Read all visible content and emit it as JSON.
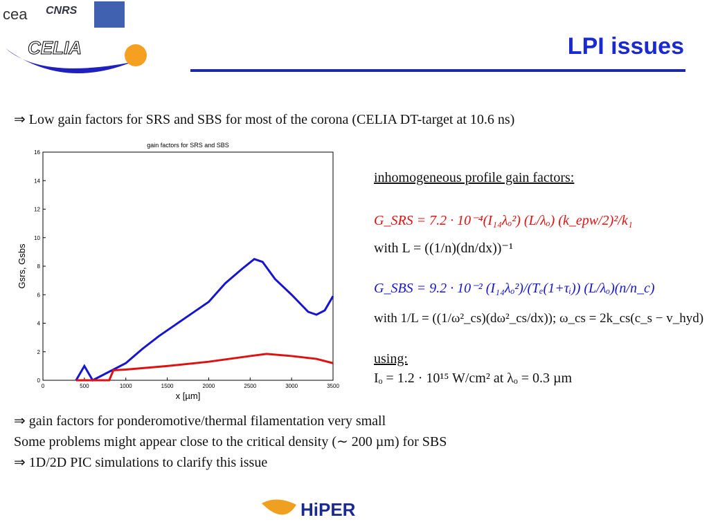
{
  "header": {
    "title": "LPI issues",
    "logos": [
      "cea",
      "CNRS",
      "CELIA",
      "HiPER"
    ]
  },
  "intro": "⇒ Low gain factors for SRS and SBS for most of the corona (CELIA DT-target at 10.6 ns)",
  "chart_data": {
    "type": "line",
    "title": "gain factors for SRS and SBS",
    "x_label": "x [µm]",
    "y_label": "Gsrs, Gsbs",
    "xlim": [
      0,
      3500
    ],
    "xticks": [
      0,
      500,
      1000,
      1500,
      2000,
      2500,
      3000,
      3500
    ],
    "ylim": [
      0,
      16
    ],
    "yticks": [
      0,
      2,
      4,
      6,
      8,
      10,
      12,
      14,
      16
    ],
    "series": [
      {
        "color": "#1515d0",
        "x": [
          400,
          500,
          600,
          800,
          1000,
          1200,
          1400,
          1600,
          1800,
          2000,
          2200,
          2400,
          2550,
          2650,
          2800,
          3000,
          3200,
          3300,
          3400,
          3500
        ],
        "values": [
          0,
          1.0,
          0,
          0.6,
          1.2,
          2.2,
          3.1,
          3.9,
          4.7,
          5.5,
          6.8,
          7.8,
          8.5,
          8.3,
          7.1,
          6.0,
          4.8,
          4.6,
          4.9,
          5.9
        ]
      },
      {
        "color": "#e01010",
        "x": [
          400,
          800,
          850,
          1000,
          1500,
          2000,
          2500,
          2700,
          3000,
          3300,
          3500
        ],
        "values": [
          0,
          0,
          0.7,
          0.75,
          1.0,
          1.3,
          1.7,
          1.85,
          1.7,
          1.5,
          1.2
        ]
      }
    ]
  },
  "formulas": {
    "heading": "inhomogeneous profile gain factors:",
    "srs": "G_SRS = 7.2 · 10⁻⁴(I₁₄λₒ²) (L/λₒ) (k_epw/2)²/k₁",
    "srs_with": "with L = ((1/n)(dn/dx))⁻¹",
    "sbs": "G_SBS = 9.2 · 10⁻² (I₁₄λₒ²)/(Tₑ(1+τᵢ)) (L/λₒ)(n/n_c)",
    "sbs_with": "with 1/L = ((1/ω²_cs)(dω²_cs/dx)); ω_cs = 2k_cs(c_s − v_hyd)",
    "using": "using:",
    "intensity": "Iₒ = 1.2 · 10¹⁵ W/cm² at λₒ = 0.3 µm"
  },
  "conclusions": [
    "⇒ gain factors for ponderomotive/thermal filamentation very small",
    "Some problems might appear close to the critical density (∼ 200 µm) for SBS",
    "⇒ 1D/2D PIC simulations to clarify this issue"
  ]
}
